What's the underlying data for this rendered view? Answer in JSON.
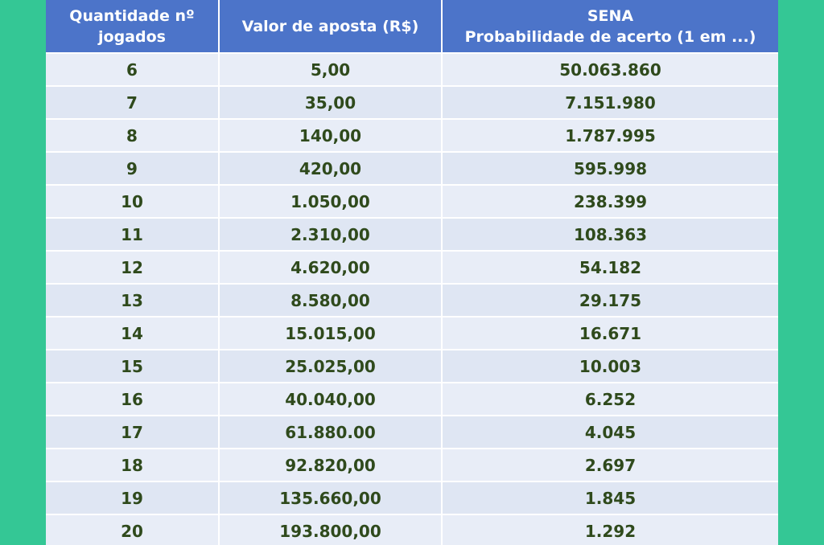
{
  "table": {
    "headers": [
      {
        "line1": "Quantidade nº",
        "line2": "jogados"
      },
      {
        "line1": "Valor de aposta (R$)",
        "line2": ""
      },
      {
        "line1": "SENA",
        "line2": "Probabilidade de acerto (1 em ...)"
      }
    ],
    "rows": [
      [
        "6",
        "5,00",
        "50.063.860"
      ],
      [
        "7",
        "35,00",
        "7.151.980"
      ],
      [
        "8",
        "140,00",
        "1.787.995"
      ],
      [
        "9",
        "420,00",
        "595.998"
      ],
      [
        "10",
        "1.050,00",
        "238.399"
      ],
      [
        "11",
        "2.310,00",
        "108.363"
      ],
      [
        "12",
        "4.620,00",
        "54.182"
      ],
      [
        "13",
        "8.580,00",
        "29.175"
      ],
      [
        "14",
        "15.015,00",
        "16.671"
      ],
      [
        "15",
        "25.025,00",
        "10.003"
      ],
      [
        "16",
        "40.040,00",
        "6.252"
      ],
      [
        "17",
        "61.880.00",
        "4.045"
      ],
      [
        "18",
        "92.820,00",
        "2.697"
      ],
      [
        "19",
        "135.660,00",
        "1.845"
      ],
      [
        "20",
        "193.800,00",
        "1.292"
      ]
    ]
  },
  "colors": {
    "background": "#34c795",
    "header": "#4c74c9",
    "cell_text": "#2f4a1c"
  }
}
